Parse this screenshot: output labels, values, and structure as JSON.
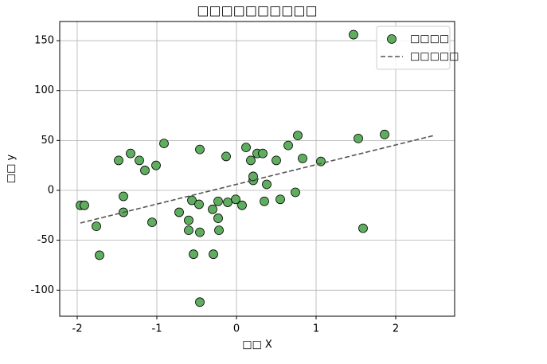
{
  "chart_data": {
    "type": "scatter",
    "title": "□□□□□□□□□□",
    "x_label": "□□ X",
    "y_label": "□□ y",
    "xlim": [
      -2.22,
      2.74
    ],
    "ylim": [
      -126.1,
      169.2
    ],
    "xticks": [
      -2,
      -1,
      0,
      1,
      2
    ],
    "yticks": [
      -100,
      -50,
      0,
      50,
      100,
      150
    ],
    "grid": true,
    "legend": "upper right",
    "series": [
      {
        "name": "□□□□",
        "type": "scatter",
        "color": "#5fae5f",
        "x": [
          -1.96,
          -1.91,
          -1.76,
          -1.72,
          -1.48,
          -1.42,
          -1.42,
          -1.33,
          -1.22,
          -1.15,
          -1.06,
          -1.01,
          -0.91,
          -0.72,
          -0.6,
          -0.6,
          -0.56,
          -0.54,
          -0.47,
          -0.46,
          -0.46,
          -0.46,
          -0.3,
          -0.29,
          -0.23,
          -0.23,
          -0.22,
          -0.13,
          -0.11,
          -0.01,
          0.07,
          0.12,
          0.18,
          0.21,
          0.21,
          0.26,
          0.33,
          0.35,
          0.38,
          0.5,
          0.55,
          0.65,
          0.74,
          0.77,
          0.83,
          1.06,
          1.47,
          1.53,
          1.59,
          1.86
        ],
        "values": [
          -15,
          -15,
          -36,
          -65,
          30,
          -6,
          -22,
          37,
          30,
          20,
          -32,
          25,
          47,
          -22,
          -30,
          -40,
          -10,
          -64,
          -14,
          41,
          -42,
          -112,
          -19,
          -64,
          -11,
          -28,
          -40,
          34,
          -12,
          -9,
          -15,
          43,
          30,
          10,
          14,
          37,
          37,
          -11,
          6,
          30,
          -9,
          45,
          -2,
          55,
          32,
          29,
          156,
          52,
          -38,
          56
        ]
      },
      {
        "name": "□□□□□",
        "type": "line",
        "color": "#555555",
        "x": [
          -1.96,
          2.48
        ],
        "values": [
          -32.7,
          55
        ]
      }
    ]
  }
}
